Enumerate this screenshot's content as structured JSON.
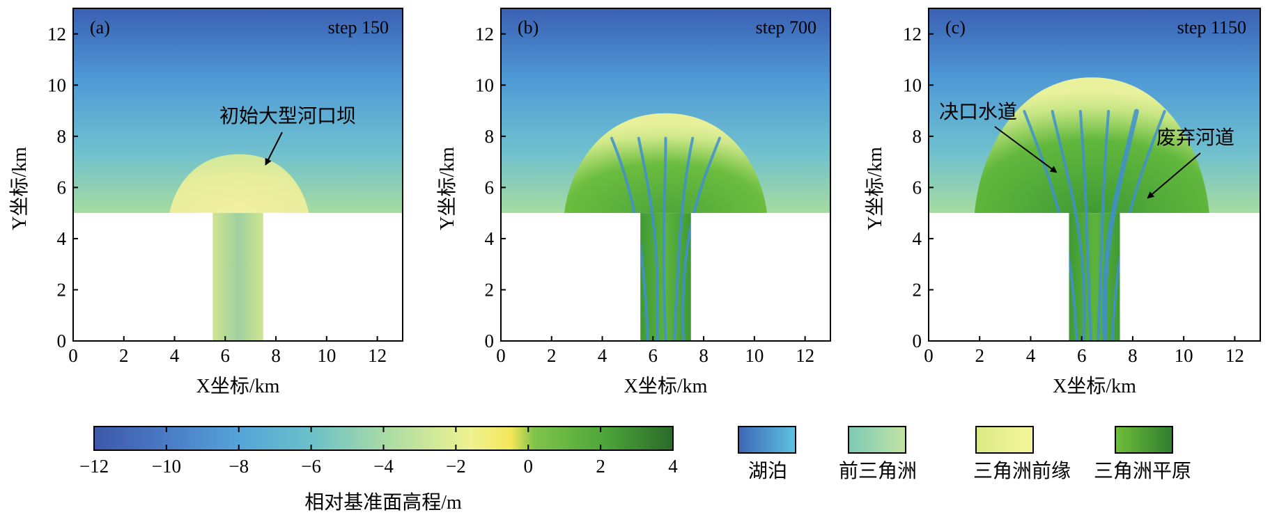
{
  "chart_data": [
    {
      "type": "heatmap",
      "panel": "(a)",
      "step_label": "step 150",
      "xlabel": "X坐标/km",
      "ylabel": "Y坐标/km",
      "xlim": [
        0,
        13
      ],
      "ylim": [
        0,
        13
      ],
      "xticks": [
        0,
        2,
        4,
        6,
        8,
        10,
        12
      ],
      "yticks": [
        0,
        2,
        4,
        6,
        8,
        10,
        12
      ],
      "lake_boundary_y": 5,
      "channel_x": [
        5.5,
        7.5
      ],
      "deposit_extent": {
        "x": [
          3.8,
          9.3
        ],
        "y_top": 7.3
      },
      "annotations": [
        {
          "text": "初始大型河口坝",
          "arrow_to": [
            7.6,
            6.9
          ]
        }
      ]
    },
    {
      "type": "heatmap",
      "panel": "(b)",
      "step_label": "step 700",
      "xlabel": "X坐标/km",
      "ylabel": "Y坐标/km",
      "xlim": [
        0,
        13
      ],
      "ylim": [
        0,
        13
      ],
      "xticks": [
        0,
        2,
        4,
        6,
        8,
        10,
        12
      ],
      "yticks": [
        0,
        2,
        4,
        6,
        8,
        10,
        12
      ],
      "lake_boundary_y": 5,
      "channel_x": [
        5.5,
        7.5
      ],
      "deposit_extent": {
        "x": [
          2.5,
          10.5
        ],
        "y_top": 8.9
      },
      "annotations": []
    },
    {
      "type": "heatmap",
      "panel": "(c)",
      "step_label": "step 1150",
      "xlabel": "X坐标/km",
      "ylabel": "Y坐标/km",
      "xlim": [
        0,
        13
      ],
      "ylim": [
        0,
        13
      ],
      "xticks": [
        0,
        2,
        4,
        6,
        8,
        10,
        12
      ],
      "yticks": [
        0,
        2,
        4,
        6,
        8,
        10,
        12
      ],
      "lake_boundary_y": 5,
      "channel_x": [
        5.5,
        7.5
      ],
      "deposit_extent": {
        "x": [
          1.8,
          11.0
        ],
        "y_top": 10.3
      },
      "annotations": [
        {
          "text": "决口水道",
          "arrow_to": [
            5.0,
            6.6
          ]
        },
        {
          "text": "废弃河道",
          "arrow_to": [
            8.6,
            5.6
          ]
        }
      ]
    }
  ],
  "colorbar": {
    "title": "相对基准面高程/m",
    "range": [
      -12,
      4
    ],
    "ticks": [
      -12,
      -10,
      -8,
      -6,
      -4,
      -2,
      0,
      2,
      4
    ],
    "tick_labels": [
      "−12",
      "−10",
      "−8",
      "−6",
      "−4",
      "−2",
      "0",
      "2",
      "4"
    ]
  },
  "legend": [
    {
      "label": "湖泊",
      "colors": [
        "#3d66b6",
        "#5ec3e0"
      ]
    },
    {
      "label": "前三角洲",
      "colors": [
        "#7cc9b5",
        "#c2e4a3"
      ]
    },
    {
      "label": "三角洲前缘",
      "colors": [
        "#d9eb86",
        "#f7f59b"
      ]
    },
    {
      "label": "三角洲平原",
      "colors": [
        "#6fbf3b",
        "#2f7c2d"
      ]
    }
  ]
}
